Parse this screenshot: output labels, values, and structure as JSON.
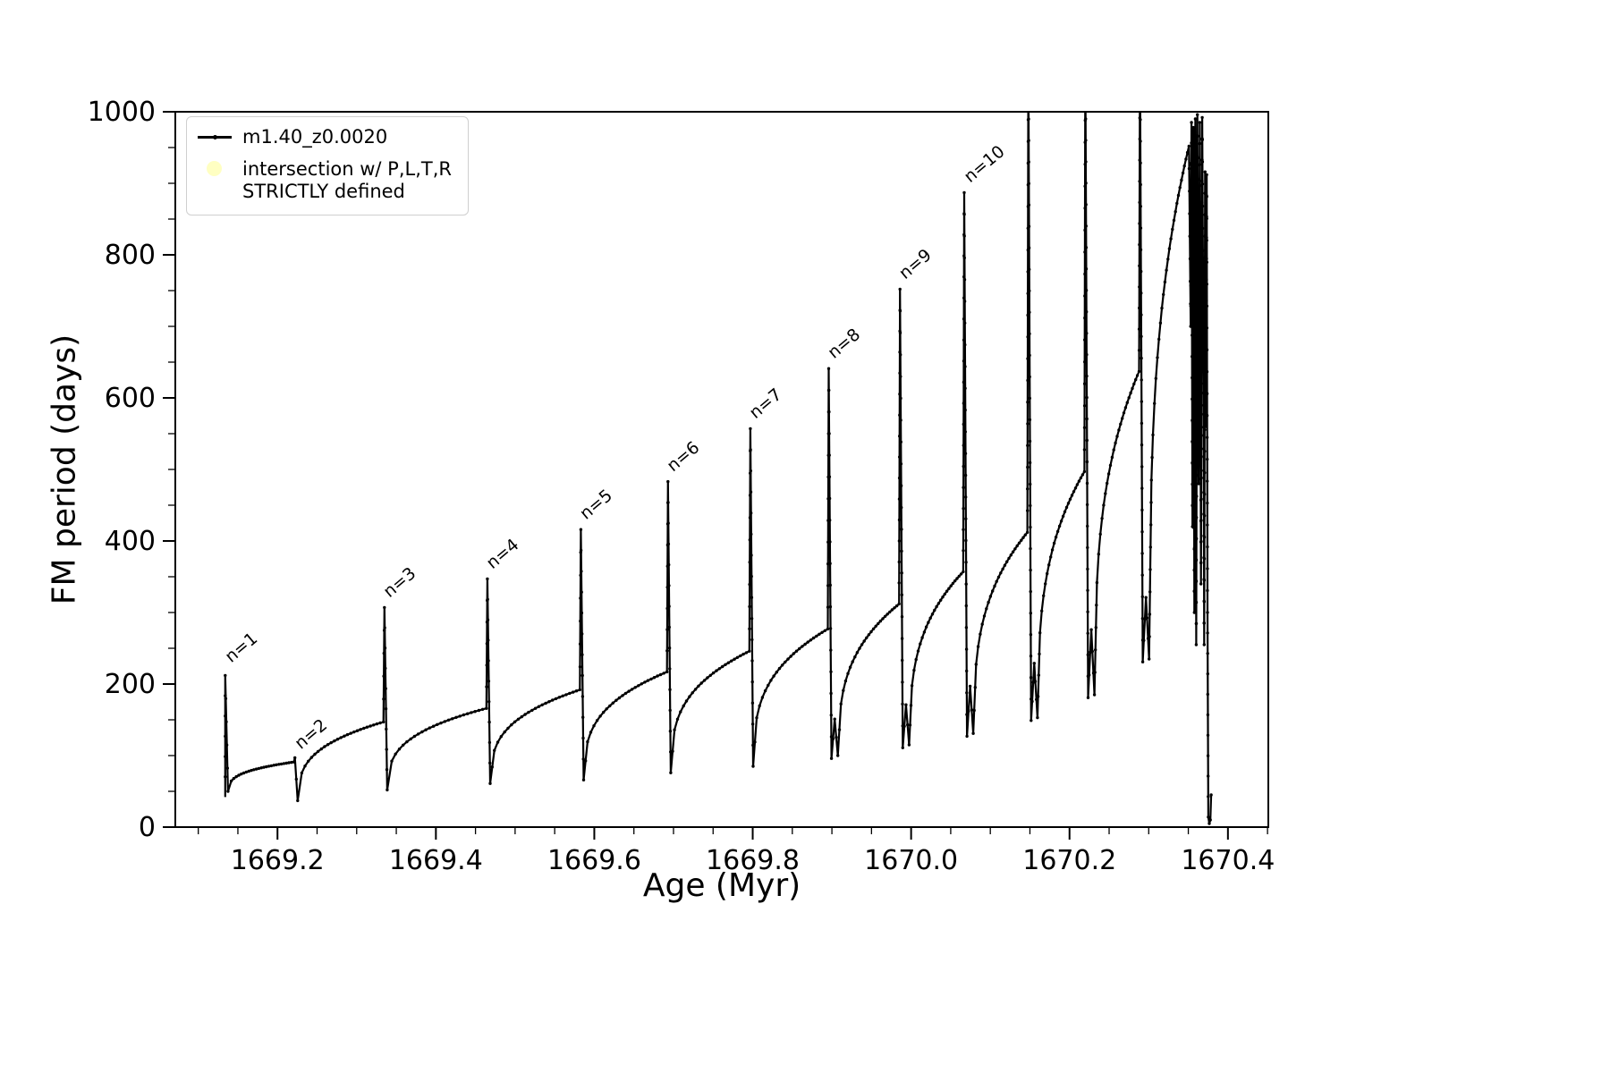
{
  "figure": {
    "background": "#ffffff"
  },
  "chart_data": {
    "type": "line",
    "title": "",
    "xlabel": "Age (Myr)",
    "ylabel": "FM period (days)",
    "xlim": [
      1669.071,
      1670.451
    ],
    "ylim": [
      0,
      1000
    ],
    "xticks": [
      1669.2,
      1669.4,
      1669.6,
      1669.8,
      1670.0,
      1670.2,
      1670.4
    ],
    "xtick_labels": [
      "1669.2",
      "1669.4",
      "1669.6",
      "1669.8",
      "1670.0",
      "1670.2",
      "1670.4"
    ],
    "yticks": [
      0,
      200,
      400,
      600,
      800,
      1000
    ],
    "ytick_labels": [
      "0",
      "200",
      "400",
      "600",
      "800",
      "1000"
    ],
    "x_minor_step": 0.05,
    "y_minor_step": 50,
    "grid": false,
    "legend": {
      "position": "upper left",
      "items": [
        {
          "label": "m1.40_z0.0020",
          "marker": "line-dot",
          "color": "#000000"
        },
        {
          "label_line1": "intersection w/ P,L,T,R",
          "label_line2": "STRICTLY defined",
          "marker": "dot",
          "color": "#ffffc2"
        }
      ]
    },
    "series": [
      {
        "name": "m1.40_z0.0020",
        "color": "#000000",
        "start": {
          "x": 1669.134,
          "y": 42
        },
        "cycles": [
          {
            "n": 1,
            "spike_x": 1669.134,
            "peak": 212,
            "min": 50,
            "end": 91,
            "next_x": 1669.222
          },
          {
            "n": 2,
            "spike_x": 1669.222,
            "peak": 97,
            "min": 37,
            "end": 147,
            "next_x": 1669.335
          },
          {
            "n": 3,
            "spike_x": 1669.335,
            "peak": 307,
            "min": 52,
            "end": 166,
            "next_x": 1669.465
          },
          {
            "n": 4,
            "spike_x": 1669.465,
            "peak": 347,
            "min": 61,
            "end": 192,
            "next_x": 1669.583
          },
          {
            "n": 5,
            "spike_x": 1669.583,
            "peak": 416,
            "min": 66,
            "end": 217,
            "next_x": 1669.693
          },
          {
            "n": 6,
            "spike_x": 1669.693,
            "peak": 483,
            "min": 76,
            "end": 246,
            "next_x": 1669.797
          },
          {
            "n": 7,
            "spike_x": 1669.797,
            "peak": 557,
            "min": 85,
            "end": 277,
            "next_x": 1669.896
          },
          {
            "n": 8,
            "spike_x": 1669.896,
            "peak": 641,
            "min": 96,
            "end": 312,
            "next_x": 1669.986,
            "dip2": 55
          },
          {
            "n": 9,
            "spike_x": 1669.986,
            "peak": 752,
            "min": 111,
            "end": 357,
            "next_x": 1670.067,
            "dip2": 60
          },
          {
            "n": 10,
            "spike_x": 1670.067,
            "peak": 887,
            "min": 127,
            "end": 412,
            "next_x": 1670.148,
            "dip2": 70
          },
          {
            "n": 11,
            "spike_x": 1670.148,
            "peak": 1080,
            "min": 149,
            "end": 497,
            "next_x": 1670.22,
            "dip2": 80,
            "clipped": true
          },
          {
            "n": 12,
            "spike_x": 1670.22,
            "peak": 1080,
            "min": 181,
            "end": 637,
            "next_x": 1670.289,
            "dip2": 95,
            "clipped": true
          },
          {
            "n": 13,
            "spike_x": 1670.289,
            "peak": 1080,
            "min": 231,
            "end": 952,
            "next_x": 1670.352,
            "dip2": 90,
            "clipped": true
          }
        ],
        "tail_points": [
          [
            1670.353,
            700
          ],
          [
            1670.354,
            985
          ],
          [
            1670.3552,
            420
          ],
          [
            1670.3564,
            978
          ],
          [
            1670.3576,
            300
          ],
          [
            1670.3588,
            990
          ],
          [
            1670.36,
            255
          ],
          [
            1670.3615,
            996
          ],
          [
            1670.363,
            480
          ],
          [
            1670.3645,
            985
          ],
          [
            1670.366,
            340
          ],
          [
            1670.3676,
            992
          ],
          [
            1670.3692,
            620
          ],
          [
            1670.37,
            255
          ],
          [
            1670.3712,
            916
          ],
          [
            1670.3724,
            560
          ],
          [
            1670.3732,
            912
          ],
          [
            1670.3742,
            300
          ],
          [
            1670.3752,
            14
          ],
          [
            1670.3765,
            5
          ],
          [
            1670.3778,
            10
          ],
          [
            1670.3788,
            45
          ]
        ]
      }
    ],
    "annotations": [
      {
        "label": "n=1",
        "x": 1669.138,
        "y": 224
      },
      {
        "label": "n=2",
        "x": 1669.226,
        "y": 103
      },
      {
        "label": "n=3",
        "x": 1669.338,
        "y": 315
      },
      {
        "label": "n=4",
        "x": 1669.468,
        "y": 355
      },
      {
        "label": "n=5",
        "x": 1669.586,
        "y": 424
      },
      {
        "label": "n=6",
        "x": 1669.696,
        "y": 491
      },
      {
        "label": "n=7",
        "x": 1669.8,
        "y": 565
      },
      {
        "label": "n=8",
        "x": 1669.899,
        "y": 649
      },
      {
        "label": "n=9",
        "x": 1669.989,
        "y": 760
      },
      {
        "label": "n=10",
        "x": 1670.071,
        "y": 895
      }
    ]
  }
}
